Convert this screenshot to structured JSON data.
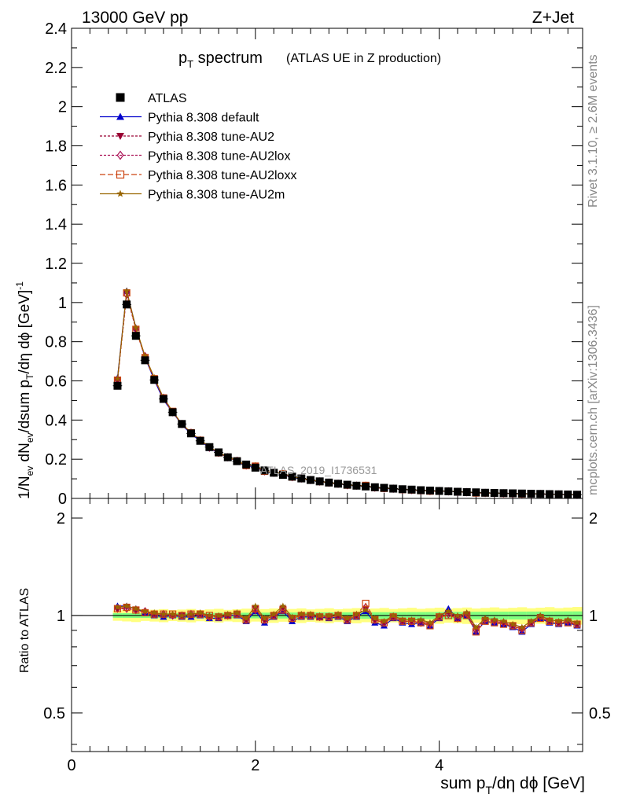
{
  "header": {
    "energy": "13000 GeV pp",
    "process": "Z+Jet",
    "title_main": "p",
    "title_sub": "T",
    "title_rest": " spectrum",
    "title_paren": "(ATLAS UE in Z production)",
    "analysis_id": "ATLAS_2019_I1736531",
    "side_rivet": "Rivet 3.1.10, ≥ 2.6M events",
    "side_mcplots": "mcplots.cern.ch [arXiv:1306.3436]"
  },
  "axes": {
    "y_label": "1/N_ev dN_ev/dsum p_T/dη dϕ [GeV]^-1",
    "ratio_label": "Ratio to ATLAS",
    "x_label": "sum p_T/dη dϕ [GeV]"
  },
  "colors": {
    "atlas": "#000000",
    "default": "#0000cc",
    "au2": "#990033",
    "au2lox": "#aa1155",
    "au2loxx": "#cc4411",
    "au2m": "#996600",
    "band_yellow": "#ffff80",
    "band_green": "#80ff80"
  },
  "chart_data": {
    "type": "line",
    "xlim": [
      0,
      5.56
    ],
    "ylim": [
      0,
      2.4
    ],
    "ratio_ylim": [
      0.38,
      2.3
    ],
    "x_ticks": [
      0,
      2,
      4
    ],
    "y_ticks": [
      0,
      0.2,
      0.4,
      0.6,
      0.8,
      1,
      1.2,
      1.4,
      1.6,
      1.8,
      2,
      2.2,
      2.4
    ],
    "ratio_ticks": [
      0.5,
      1,
      2
    ],
    "x": [
      0.5,
      0.6,
      0.7,
      0.8,
      0.9,
      1.0,
      1.1,
      1.2,
      1.3,
      1.4,
      1.5,
      1.6,
      1.7,
      1.8,
      1.9,
      2.0,
      2.1,
      2.2,
      2.3,
      2.4,
      2.5,
      2.6,
      2.7,
      2.8,
      2.9,
      3.0,
      3.1,
      3.2,
      3.3,
      3.4,
      3.5,
      3.6,
      3.7,
      3.8,
      3.9,
      4.0,
      4.1,
      4.2,
      4.3,
      4.4,
      4.5,
      4.6,
      4.7,
      4.8,
      4.9,
      5.0,
      5.1,
      5.2,
      5.3,
      5.4,
      5.5
    ],
    "reference": {
      "name": "ATLAS",
      "values": [
        0.575,
        0.99,
        0.83,
        0.705,
        0.605,
        0.508,
        0.44,
        0.38,
        0.332,
        0.294,
        0.262,
        0.235,
        0.21,
        0.19,
        0.173,
        0.157,
        0.143,
        0.131,
        0.12,
        0.111,
        0.102,
        0.094,
        0.087,
        0.081,
        0.075,
        0.07,
        0.065,
        0.061,
        0.057,
        0.054,
        0.05,
        0.047,
        0.045,
        0.042,
        0.04,
        0.038,
        0.036,
        0.034,
        0.032,
        0.031,
        0.029,
        0.028,
        0.027,
        0.026,
        0.025,
        0.024,
        0.023,
        0.022,
        0.021,
        0.02,
        0.019
      ]
    },
    "series": [
      {
        "name": "Pythia 8.308 default",
        "key": "default",
        "marker": "triangle",
        "dash": "",
        "ratio": [
          1.07,
          1.07,
          1.05,
          1.02,
          1.0,
          0.99,
          1.0,
          0.99,
          0.99,
          1.0,
          0.98,
          0.98,
          1.0,
          1.0,
          0.96,
          1.03,
          0.95,
          0.99,
          1.03,
          0.96,
          0.99,
          0.99,
          0.99,
          0.98,
          0.99,
          0.96,
          0.99,
          1.03,
          0.95,
          0.93,
          0.98,
          0.95,
          0.94,
          0.95,
          0.93,
          0.98,
          1.05,
          0.98,
          1.0,
          0.89,
          0.96,
          0.95,
          0.94,
          0.92,
          0.89,
          0.94,
          0.98,
          0.95,
          0.94,
          0.95,
          0.93
        ]
      },
      {
        "name": "Pythia 8.308 tune-AU2",
        "key": "au2",
        "marker": "triangle-down",
        "dash": "3,2",
        "ratio": [
          1.05,
          1.06,
          1.04,
          1.02,
          1.01,
          1.0,
          1.0,
          1.0,
          1.0,
          1.01,
          0.99,
          0.99,
          1.0,
          1.01,
          0.97,
          1.05,
          0.97,
          1.0,
          1.05,
          0.98,
          1.0,
          1.0,
          0.99,
          0.99,
          1.0,
          0.97,
          1.0,
          1.05,
          0.97,
          0.95,
          0.99,
          0.96,
          0.96,
          0.96,
          0.94,
          0.99,
          1.02,
          0.99,
          1.01,
          0.91,
          0.97,
          0.96,
          0.95,
          0.93,
          0.91,
          0.95,
          0.99,
          0.96,
          0.95,
          0.96,
          0.94
        ]
      },
      {
        "name": "Pythia 8.308 tune-AU2lox",
        "key": "au2lox",
        "marker": "diamond",
        "dash": "3,2",
        "ratio": [
          1.05,
          1.05,
          1.04,
          1.03,
          1.01,
          1.01,
          1.0,
          1.0,
          1.01,
          1.01,
          0.99,
          0.99,
          1.0,
          1.01,
          0.97,
          1.04,
          0.97,
          1.0,
          1.04,
          0.98,
          1.0,
          1.0,
          0.99,
          0.99,
          1.0,
          0.97,
          1.0,
          1.06,
          0.97,
          0.95,
          0.99,
          0.96,
          0.96,
          0.95,
          0.94,
          0.99,
          1.01,
          0.98,
          1.01,
          0.9,
          0.97,
          0.96,
          0.95,
          0.93,
          0.91,
          0.95,
          0.99,
          0.96,
          0.95,
          0.96,
          0.94
        ]
      },
      {
        "name": "Pythia 8.308 tune-AU2loxx",
        "key": "au2loxx",
        "marker": "square-open",
        "dash": "7,3",
        "ratio": [
          1.05,
          1.06,
          1.04,
          1.02,
          1.01,
          1.01,
          1.01,
          1.0,
          1.01,
          1.01,
          1.0,
          0.99,
          1.0,
          1.01,
          0.97,
          1.05,
          0.97,
          1.0,
          1.04,
          0.98,
          1.0,
          1.0,
          0.99,
          0.99,
          1.0,
          0.97,
          1.0,
          1.09,
          0.97,
          0.95,
          0.99,
          0.96,
          0.96,
          0.95,
          0.93,
          0.99,
          1.0,
          0.98,
          1.0,
          0.89,
          0.96,
          0.95,
          0.94,
          0.93,
          0.9,
          0.95,
          0.98,
          0.96,
          0.95,
          0.95,
          0.94
        ]
      },
      {
        "name": "Pythia 8.308 tune-AU2m",
        "key": "au2m",
        "marker": "star",
        "dash": "",
        "ratio": [
          1.06,
          1.07,
          1.05,
          1.03,
          1.02,
          1.01,
          1.01,
          1.0,
          1.01,
          1.02,
          1.0,
          1.0,
          1.01,
          1.02,
          0.98,
          1.07,
          0.98,
          1.01,
          1.07,
          0.99,
          1.01,
          1.01,
          1.0,
          1.0,
          1.01,
          0.98,
          1.01,
          1.04,
          0.98,
          0.96,
          1.0,
          0.97,
          0.97,
          0.97,
          0.95,
          1.0,
          1.03,
          1.0,
          1.02,
          0.92,
          0.98,
          0.97,
          0.96,
          0.94,
          0.92,
          0.96,
          1.0,
          0.97,
          0.96,
          0.97,
          0.95
        ]
      }
    ]
  }
}
